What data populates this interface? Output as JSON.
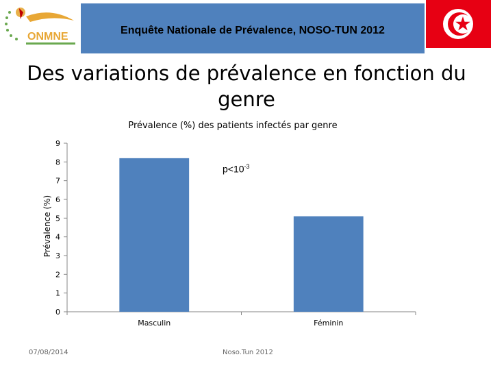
{
  "header": {
    "banner_text": "Enquête Nationale de Prévalence, NOSO-TUN 2012",
    "logo_text": "ONMNE"
  },
  "slide": {
    "title": "Des variations de prévalence en fonction du genre"
  },
  "chart_data": {
    "type": "bar",
    "title": "Prévalence (%) des patients infectés par genre",
    "ylabel": "Prévalence (%)",
    "xlabel": "",
    "categories": [
      "Masculin",
      "Féminin"
    ],
    "values": [
      8.2,
      5.1
    ],
    "ylim": [
      0,
      9
    ],
    "yticks": [
      0,
      1,
      2,
      3,
      4,
      5,
      6,
      7,
      8,
      9
    ],
    "annotation": {
      "base": "p<10",
      "exponent": "-3"
    },
    "bar_color": "#4f81bd",
    "grid": false,
    "legend": "none"
  },
  "footer": {
    "date": "07/08/2014",
    "source": "Noso.Tun 2012"
  },
  "colors": {
    "banner": "#4f81bd",
    "flag_red": "#e70013"
  }
}
